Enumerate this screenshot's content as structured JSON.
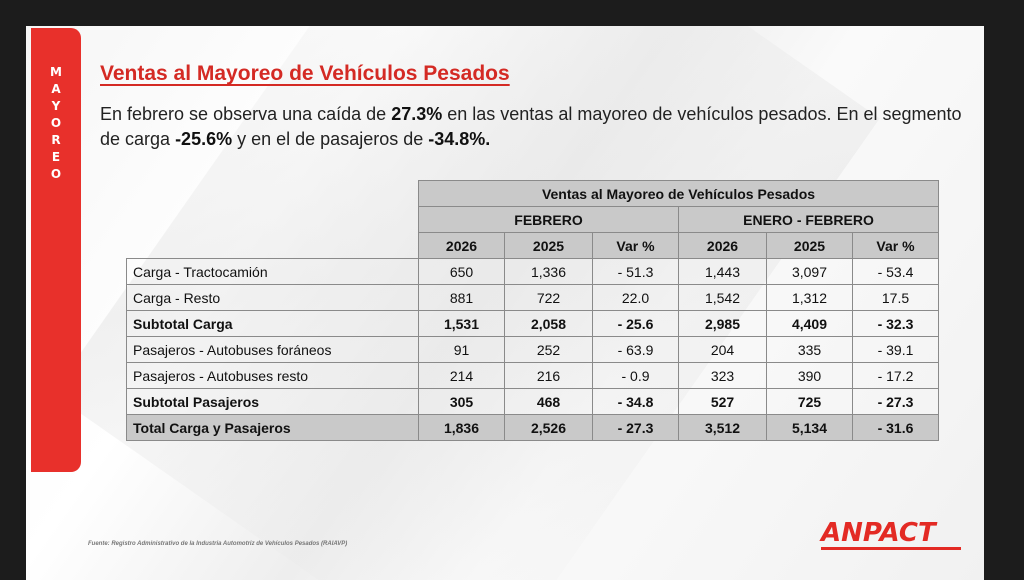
{
  "side_tab": {
    "letters": [
      "M",
      "A",
      "Y",
      "O",
      "R",
      "E",
      "O"
    ]
  },
  "title": "Ventas al Mayoreo de Vehículos Pesados",
  "lead": {
    "p1": "En febrero se observa una caída de ",
    "b1": "27.3%",
    "p2": " en las ventas al mayoreo de vehículos pesados. En el segmento de carga ",
    "b2": "-25.6%",
    "p3": " y en el de pasajeros de ",
    "b3": "-34.8%."
  },
  "table": {
    "title": "Ventas al Mayoreo de Vehículos Pesados",
    "group1": "FEBRERO",
    "group2": "ENERO - FEBRERO",
    "cols": [
      "2026",
      "2025",
      "Var %",
      "2026",
      "2025",
      "Var %"
    ],
    "rows": [
      {
        "label": "Carga - Tractocamión",
        "values": [
          "650",
          "1,336",
          "- 51.3",
          "1,443",
          "3,097",
          "- 53.4"
        ]
      },
      {
        "label": "Carga - Resto",
        "values": [
          "881",
          "722",
          "22.0",
          "1,542",
          "1,312",
          "17.5"
        ]
      },
      {
        "label": "Subtotal Carga",
        "values": [
          "1,531",
          "2,058",
          "- 25.6",
          "2,985",
          "4,409",
          "- 32.3"
        ]
      },
      {
        "label": "Pasajeros - Autobuses foráneos",
        "values": [
          "91",
          "252",
          "- 63.9",
          "204",
          "335",
          "- 39.1"
        ]
      },
      {
        "label": "Pasajeros - Autobuses resto",
        "values": [
          "214",
          "216",
          "- 0.9",
          "323",
          "390",
          "- 17.2"
        ]
      },
      {
        "label": "Subtotal Pasajeros",
        "values": [
          "305",
          "468",
          "- 34.8",
          "527",
          "725",
          "- 27.3"
        ]
      },
      {
        "label": "Total Carga y Pasajeros",
        "values": [
          "1,836",
          "2,526",
          "- 27.3",
          "3,512",
          "5,134",
          "- 31.6"
        ]
      }
    ]
  },
  "source": "Fuente: Registro Administrativo de la Industria Automotriz de Vehículos Pesados (RAIAVP)",
  "logo": "ANPACT",
  "colors": {
    "accent": "#e8302b",
    "title": "#d42a24",
    "header_fill": "#c9c9c9"
  }
}
